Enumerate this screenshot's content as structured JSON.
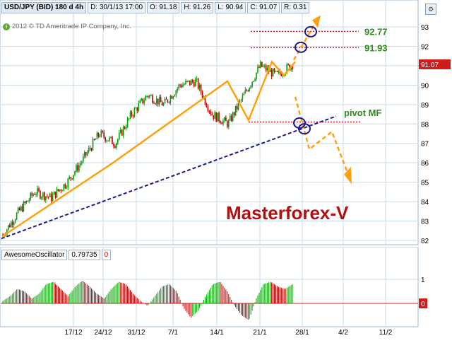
{
  "header": {
    "symbol": "USD/JPY (BID) 180 d 4h",
    "date": "D: 30/1/13 17:00",
    "open": "O: 91.18",
    "high": "H: 91.26",
    "low": "L: 90.94",
    "close": "C: 91.07",
    "range": "R: 0.31"
  },
  "copyright": "2012 © TD Ameritrade IP Company, Inc.",
  "price_axis": {
    "ticks": [
      "93",
      "92",
      "91",
      "90",
      "89",
      "88",
      "87",
      "86",
      "85",
      "84",
      "83",
      "82"
    ],
    "current_price_label": "91.07"
  },
  "annotations": {
    "target_high": "92.77",
    "target_low": "91.93",
    "pivot": "pivot MF",
    "watermark": "Masterforex-V"
  },
  "oscillator": {
    "name": "AwesomeOscillator",
    "value": "0.79735",
    "level_label": "0",
    "axis_ticks": [
      "1",
      "0"
    ],
    "axis_zero_label": "0"
  },
  "time_axis": {
    "labels": [
      "17/12",
      "24/12",
      "31/12",
      "7/1",
      "14/1",
      "21/1",
      "28/1",
      "4/2",
      "11/2"
    ]
  },
  "colors": {
    "up_bar": "#00a000",
    "down_bar": "#c00000",
    "trend_line": "#ffa010",
    "support_line": "#1a1a8c",
    "level_line": "#e02020",
    "grid": "#c9dbe8",
    "watermark": "#b01010",
    "label_green": "#2e8b1a"
  },
  "chart_data": {
    "type": "candlestick",
    "x": [
      "17/12",
      "24/12",
      "31/12",
      "7/1",
      "14/1",
      "21/1",
      "28/1",
      "4/2",
      "11/2"
    ],
    "ylim": [
      82,
      93.5
    ],
    "price_path": [
      82.3,
      83.5,
      84.5,
      84.2,
      85.0,
      86.2,
      87.5,
      87.0,
      88.5,
      89.5,
      89.0,
      90.0,
      90.2,
      88.5,
      88.0,
      89.5,
      91.0,
      90.5,
      91.07
    ],
    "levels": [
      {
        "label": "92.77",
        "value": 92.77
      },
      {
        "label": "91.93",
        "value": 91.93
      },
      {
        "label": "pivot MF",
        "value": 88.1
      }
    ],
    "oscillator": {
      "name": "AwesomeOscillator",
      "values": [
        0.1,
        0.3,
        0.6,
        0.5,
        0.2,
        0.4,
        0.8,
        0.9,
        0.6,
        0.3,
        0.7,
        0.95,
        0.7,
        0.4,
        0.2,
        0.6,
        0.9,
        0.8,
        0.4,
        0.1,
        -0.1,
        0.3,
        0.7,
        0.8,
        0.5,
        -0.2,
        -0.6,
        -0.3,
        0.3,
        0.8,
        0.9,
        0.5,
        -0.1,
        -0.5,
        -0.7,
        0.2,
        0.8,
        0.9,
        0.7,
        0.6,
        0.79735
      ]
    }
  }
}
